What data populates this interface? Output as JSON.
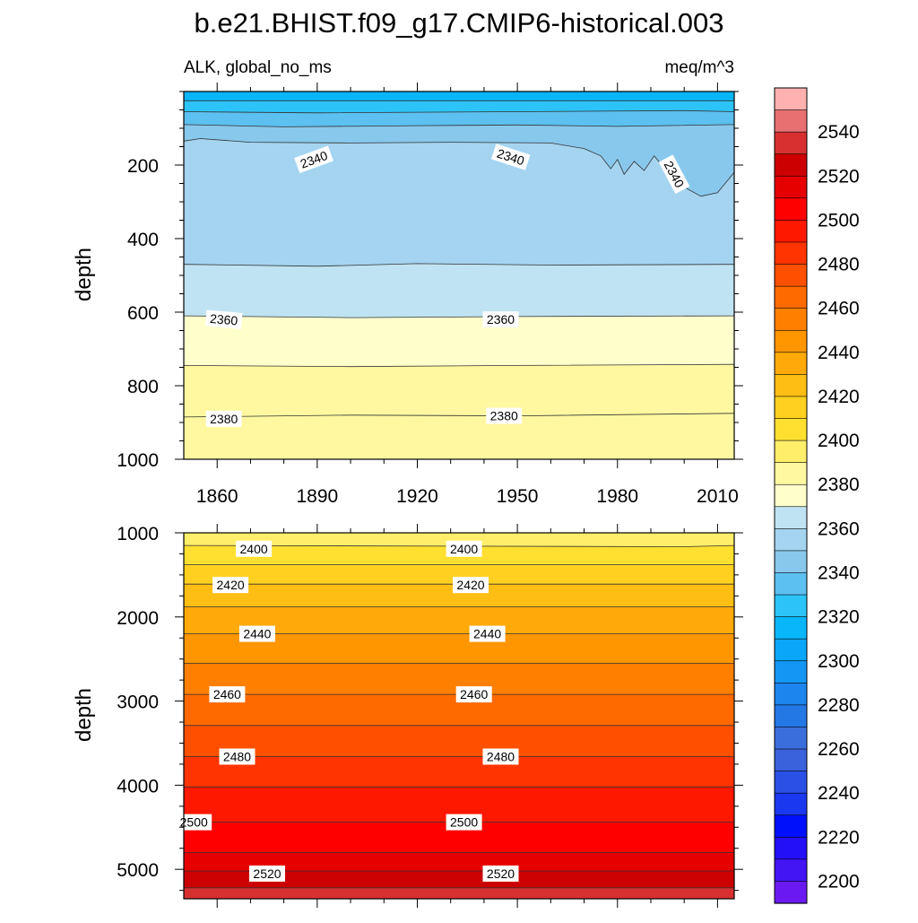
{
  "title": "b.e21.BHIST.f09_g17.CMIP6-historical.003",
  "left_subtitle": "ALK, global_no_ms",
  "right_subtitle": "meq/m^3",
  "colors": {
    "2180": "#8b26e8",
    "2190": "#6a1af0",
    "2200": "#4314f4",
    "2210": "#2410f6",
    "2220": "#0010fa",
    "2230": "#1a38f0",
    "2240": "#2a50e6",
    "2250": "#3a62dc",
    "2260": "#3a6edc",
    "2270": "#2478e6",
    "2280": "#1c86ee",
    "2290": "#1496f4",
    "2300": "#0aa6f8",
    "2310": "#0ab6fa",
    "2320": "#2cc4f8",
    "2330": "#5cc0f0",
    "2340": "#88c8ec",
    "2350": "#a4d4f0",
    "2360": "#bfe3f2",
    "2370": "#ffffcc",
    "2380": "#fff8a0",
    "2390": "#ffee6a",
    "2400": "#ffe030",
    "2410": "#ffd020",
    "2420": "#ffbe14",
    "2430": "#ffaa0a",
    "2440": "#ff9600",
    "2450": "#ff8000",
    "2460": "#ff6a00",
    "2470": "#ff5000",
    "2480": "#ff3400",
    "2490": "#ff1800",
    "2500": "#ff0000",
    "2510": "#e60000",
    "2520": "#cc0000",
    "2530": "#d83030",
    "2540": "#e87070",
    "2550": "#ffb0b0"
  },
  "chart_data": [
    {
      "type": "contour",
      "panel": "top",
      "xlim": [
        1850,
        2015
      ],
      "ylim": [
        1000,
        0
      ],
      "ylabel": "depth",
      "xticks": [
        1860,
        1890,
        1920,
        1950,
        1980,
        2010
      ],
      "yticks": [
        200,
        400,
        600,
        800,
        1000
      ],
      "band_colors": [
        "2310",
        "2320",
        "2330",
        "2340",
        "2350",
        "2360",
        "2370",
        "2380"
      ],
      "contours": [
        {
          "level": 2310,
          "depth": [
            [
              1850,
              25
            ],
            [
              2015,
              25
            ]
          ]
        },
        {
          "level": 2320,
          "depth": [
            [
              1850,
              55
            ],
            [
              1890,
              58
            ],
            [
              1950,
              55
            ],
            [
              2000,
              52
            ],
            [
              2015,
              55
            ]
          ]
        },
        {
          "level": 2330,
          "depth": [
            [
              1850,
              90
            ],
            [
              1880,
              96
            ],
            [
              1920,
              93
            ],
            [
              1950,
              91
            ],
            [
              1980,
              95
            ],
            [
              2015,
              90
            ]
          ]
        },
        {
          "level": 2340,
          "depth": [
            [
              1850,
              135
            ],
            [
              1855,
              128
            ],
            [
              1870,
              138
            ],
            [
              1900,
              140
            ],
            [
              1930,
              138
            ],
            [
              1960,
              140
            ],
            [
              1970,
              155
            ],
            [
              1975,
              175
            ],
            [
              1978,
              210
            ],
            [
              1980,
              185
            ],
            [
              1982,
              225
            ],
            [
              1985,
              190
            ],
            [
              1988,
              215
            ],
            [
              1991,
              175
            ],
            [
              1996,
              230
            ],
            [
              2000,
              260
            ],
            [
              2005,
              285
            ],
            [
              2010,
              275
            ],
            [
              2015,
              220
            ]
          ]
        },
        {
          "level": 2350,
          "depth": [
            [
              1850,
              470
            ],
            [
              1890,
              475
            ],
            [
              1920,
              468
            ],
            [
              1960,
              472
            ],
            [
              2015,
              470
            ]
          ]
        },
        {
          "level": 2360,
          "depth": [
            [
              1850,
              610
            ],
            [
              1900,
              615
            ],
            [
              1950,
              612
            ],
            [
              2015,
              610
            ]
          ]
        },
        {
          "level": 2370,
          "depth": [
            [
              1850,
              745
            ],
            [
              1900,
              748
            ],
            [
              1950,
              745
            ],
            [
              2015,
              742
            ]
          ]
        },
        {
          "level": 2380,
          "depth": [
            [
              1850,
              885
            ],
            [
              1900,
              880
            ],
            [
              1950,
              882
            ],
            [
              2015,
              875
            ]
          ]
        }
      ],
      "labels": [
        {
          "text": "2340",
          "x": 1889,
          "depth": 185,
          "angle": -20
        },
        {
          "text": "2340",
          "x": 1948,
          "depth": 178,
          "angle": 18
        },
        {
          "text": "2340",
          "x": 1997,
          "depth": 225,
          "angle": 62
        },
        {
          "text": "2360",
          "x": 1862,
          "depth": 620,
          "angle": 5
        },
        {
          "text": "2360",
          "x": 1945,
          "depth": 620,
          "angle": 0
        },
        {
          "text": "2380",
          "x": 1862,
          "depth": 890,
          "angle": 0
        },
        {
          "text": "2380",
          "x": 1946,
          "depth": 882,
          "angle": 0
        }
      ]
    },
    {
      "type": "contour",
      "panel": "bottom",
      "xlim": [
        1850,
        2015
      ],
      "ylim": [
        5350,
        1000
      ],
      "ylabel": "depth",
      "yticks": [
        1000,
        2000,
        3000,
        4000,
        5000
      ],
      "band_colors": [
        "2390",
        "2400",
        "2410",
        "2420",
        "2430",
        "2440",
        "2450",
        "2460",
        "2470",
        "2480",
        "2490",
        "2500",
        "2510",
        "2520",
        "2530"
      ],
      "contours": [
        {
          "level": 2390,
          "depth": [
            [
              1850,
              1150
            ],
            [
              2000,
              1165
            ],
            [
              2015,
              1150
            ]
          ]
        },
        {
          "level": 2400,
          "depth": [
            [
              1850,
              1380
            ],
            [
              2015,
              1380
            ]
          ]
        },
        {
          "level": 2410,
          "depth": [
            [
              1850,
              1610
            ],
            [
              2015,
              1610
            ]
          ]
        },
        {
          "level": 2420,
          "depth": [
            [
              1850,
              1880
            ],
            [
              2015,
              1880
            ]
          ]
        },
        {
          "level": 2430,
          "depth": [
            [
              1850,
              2200
            ],
            [
              2015,
              2200
            ]
          ]
        },
        {
          "level": 2440,
          "depth": [
            [
              1850,
              2550
            ],
            [
              2015,
              2550
            ]
          ]
        },
        {
          "level": 2450,
          "depth": [
            [
              1850,
              2920
            ],
            [
              2015,
              2920
            ]
          ]
        },
        {
          "level": 2460,
          "depth": [
            [
              1850,
              3290
            ],
            [
              2015,
              3290
            ]
          ]
        },
        {
          "level": 2470,
          "depth": [
            [
              1850,
              3660
            ],
            [
              2015,
              3660
            ]
          ]
        },
        {
          "level": 2480,
          "depth": [
            [
              1850,
              4020
            ],
            [
              2015,
              4020
            ]
          ]
        },
        {
          "level": 2490,
          "depth": [
            [
              1850,
              4440
            ],
            [
              2015,
              4440
            ]
          ]
        },
        {
          "level": 2500,
          "depth": [
            [
              1850,
              4800
            ],
            [
              2015,
              4800
            ]
          ]
        },
        {
          "level": 2510,
          "depth": [
            [
              1850,
              5020
            ],
            [
              2015,
              5020
            ]
          ]
        },
        {
          "level": 2520,
          "depth": [
            [
              1850,
              5220
            ],
            [
              2015,
              5220
            ]
          ]
        }
      ],
      "labels": [
        {
          "text": "2400",
          "x": 1871,
          "depth": 1190
        },
        {
          "text": "2400",
          "x": 1934,
          "depth": 1190
        },
        {
          "text": "2420",
          "x": 1864,
          "depth": 1620
        },
        {
          "text": "2420",
          "x": 1936,
          "depth": 1620
        },
        {
          "text": "2440",
          "x": 1872,
          "depth": 2200
        },
        {
          "text": "2440",
          "x": 1941,
          "depth": 2200
        },
        {
          "text": "2460",
          "x": 1863,
          "depth": 2920
        },
        {
          "text": "2460",
          "x": 1937,
          "depth": 2920
        },
        {
          "text": "2480",
          "x": 1866,
          "depth": 3660
        },
        {
          "text": "2480",
          "x": 1945,
          "depth": 3660
        },
        {
          "text": "2500",
          "x": 1853,
          "depth": 4440
        },
        {
          "text": "2500",
          "x": 1934,
          "depth": 4440
        },
        {
          "text": "2520",
          "x": 1875,
          "depth": 5050
        },
        {
          "text": "2520",
          "x": 1945,
          "depth": 5050
        }
      ]
    }
  ],
  "colorbar": {
    "levels": [
      2200,
      2210,
      2220,
      2230,
      2240,
      2250,
      2260,
      2270,
      2280,
      2290,
      2300,
      2310,
      2320,
      2330,
      2340,
      2350,
      2360,
      2370,
      2380,
      2390,
      2400,
      2410,
      2420,
      2430,
      2440,
      2450,
      2460,
      2470,
      2480,
      2490,
      2500,
      2510,
      2520,
      2530,
      2540,
      2550
    ],
    "box_colors": [
      "2190",
      "2200",
      "2210",
      "2220",
      "2230",
      "2240",
      "2250",
      "2260",
      "2270",
      "2280",
      "2290",
      "2300",
      "2310",
      "2320",
      "2330",
      "2340",
      "2350",
      "2360",
      "2370",
      "2380",
      "2390",
      "2400",
      "2410",
      "2420",
      "2430",
      "2440",
      "2450",
      "2460",
      "2470",
      "2480",
      "2490",
      "2500",
      "2510",
      "2520",
      "2530",
      "2540",
      "2550"
    ],
    "labels": [
      "2200",
      "2220",
      "2240",
      "2260",
      "2280",
      "2300",
      "2320",
      "2340",
      "2360",
      "2380",
      "2400",
      "2420",
      "2440",
      "2460",
      "2480",
      "2500",
      "2520",
      "2540"
    ]
  }
}
